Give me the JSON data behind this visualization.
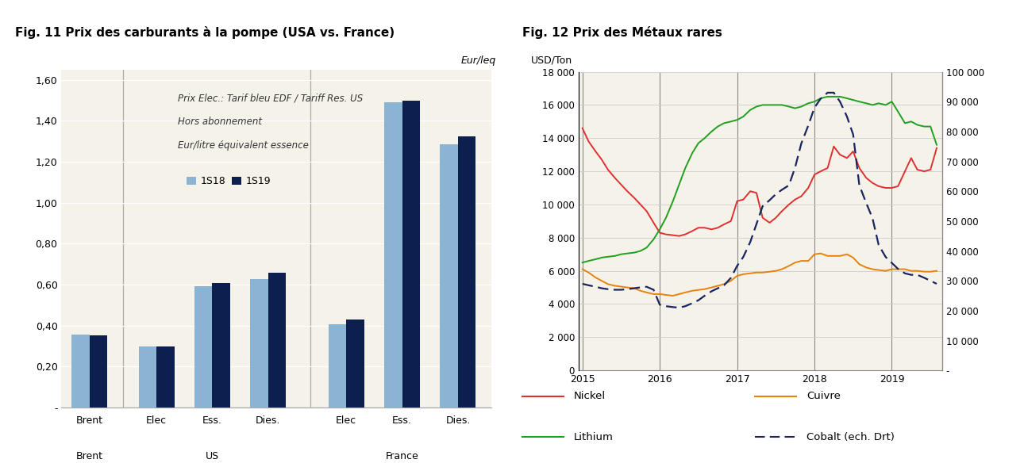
{
  "fig11": {
    "title_parts": [
      "Fig. 11 Prix des carburants à la pompe (USA ",
      "vs",
      ". France)"
    ],
    "title_full": "Fig. 11 Prix des carburants à la pompe (USA vs. France)",
    "ylabel_unit": "Eur/leq",
    "annotation_lines": [
      "Prix Elec.: Tarif bleu EDF / Tariff Res. US",
      "Hors abonnement",
      "Eur/litre équivalent essence"
    ],
    "legend": [
      "1S18",
      "1S19"
    ],
    "color_1s18": "#8ab4d2",
    "color_1s19": "#0d1f4e",
    "groups": [
      "Brent",
      "Elec",
      "Ess.",
      "Dies.",
      "Elec",
      "Ess.",
      "Dies."
    ],
    "values_1s18": [
      0.355,
      0.298,
      0.59,
      0.627,
      0.408,
      1.49,
      1.285
    ],
    "values_1s19": [
      0.353,
      0.298,
      0.608,
      0.659,
      0.428,
      1.497,
      1.322
    ],
    "ylim": [
      0,
      1.65
    ],
    "yticks": [
      0.0,
      0.2,
      0.4,
      0.6,
      0.8,
      1.0,
      1.2,
      1.4,
      1.6
    ],
    "ytick_labels": [
      "-",
      "0,20",
      "0,40",
      "0,60",
      "0,80",
      "1,00",
      "1,20",
      "1,40",
      "1,60"
    ],
    "bg_color": "#ffffff",
    "title_bg_color": "#ece8df",
    "plot_bg": "#f5f2ea"
  },
  "fig12": {
    "title": "Fig. 12 Prix des Métaux rares",
    "ylabel_left": "USD/Ton",
    "bg_color": "#ffffff",
    "title_bg_color": "#ece8df",
    "plot_bg": "#f5f2ea",
    "color_nickel": "#e03030",
    "color_cuivre": "#e8820a",
    "color_lithium": "#20a020",
    "color_cobalt": "#1a2460",
    "ylim_left": [
      0,
      18000
    ],
    "ylim_right": [
      0,
      100000
    ],
    "yticks_left": [
      0,
      2000,
      4000,
      6000,
      8000,
      10000,
      12000,
      14000,
      16000,
      18000
    ],
    "ytick_labels_left": [
      "0",
      "2 000",
      "4 000",
      "6 000",
      "8 000",
      "10 000",
      "12 000",
      "14 000",
      "16 000",
      "18 000"
    ],
    "yticks_right": [
      0,
      10000,
      20000,
      30000,
      40000,
      50000,
      60000,
      70000,
      80000,
      90000,
      100000
    ],
    "ytick_labels_right": [
      "-",
      "10 000",
      "20 000",
      "30 000",
      "40 000",
      "50 000",
      "60 000",
      "70 000",
      "80 000",
      "90 000",
      "100 000"
    ],
    "xticks": [
      2015,
      2016,
      2017,
      2018,
      2019
    ],
    "nickel_x": [
      2015.0,
      2015.08,
      2015.17,
      2015.25,
      2015.33,
      2015.42,
      2015.5,
      2015.58,
      2015.67,
      2015.75,
      2015.83,
      2015.92,
      2016.0,
      2016.08,
      2016.17,
      2016.25,
      2016.33,
      2016.42,
      2016.5,
      2016.58,
      2016.67,
      2016.75,
      2016.83,
      2016.92,
      2017.0,
      2017.08,
      2017.17,
      2017.25,
      2017.33,
      2017.42,
      2017.5,
      2017.58,
      2017.67,
      2017.75,
      2017.83,
      2017.92,
      2018.0,
      2018.08,
      2018.17,
      2018.25,
      2018.33,
      2018.42,
      2018.5,
      2018.58,
      2018.67,
      2018.75,
      2018.83,
      2018.92,
      2019.0,
      2019.08,
      2019.17,
      2019.25,
      2019.33,
      2019.42,
      2019.5,
      2019.58
    ],
    "nickel_y": [
      14600,
      13800,
      13200,
      12700,
      12100,
      11600,
      11200,
      10800,
      10400,
      10000,
      9600,
      8900,
      8300,
      8200,
      8150,
      8100,
      8200,
      8400,
      8600,
      8600,
      8500,
      8600,
      8800,
      9000,
      10200,
      10300,
      10800,
      10700,
      9200,
      8900,
      9200,
      9600,
      10000,
      10300,
      10500,
      11000,
      11800,
      12000,
      12200,
      13500,
      13000,
      12800,
      13200,
      12200,
      11600,
      11300,
      11100,
      11000,
      11000,
      11100,
      12000,
      12800,
      12100,
      12000,
      12100,
      13400
    ],
    "cuivre_x": [
      2015.0,
      2015.08,
      2015.17,
      2015.25,
      2015.33,
      2015.42,
      2015.5,
      2015.58,
      2015.67,
      2015.75,
      2015.83,
      2015.92,
      2016.0,
      2016.08,
      2016.17,
      2016.25,
      2016.33,
      2016.42,
      2016.5,
      2016.58,
      2016.67,
      2016.75,
      2016.83,
      2016.92,
      2017.0,
      2017.08,
      2017.17,
      2017.25,
      2017.33,
      2017.42,
      2017.5,
      2017.58,
      2017.67,
      2017.75,
      2017.83,
      2017.92,
      2018.0,
      2018.08,
      2018.17,
      2018.25,
      2018.33,
      2018.42,
      2018.5,
      2018.58,
      2018.67,
      2018.75,
      2018.83,
      2018.92,
      2019.0,
      2019.08,
      2019.17,
      2019.25,
      2019.33,
      2019.42,
      2019.5,
      2019.58
    ],
    "cuivre_y": [
      6100,
      5900,
      5600,
      5400,
      5200,
      5100,
      5050,
      5000,
      4950,
      4800,
      4700,
      4600,
      4600,
      4550,
      4500,
      4600,
      4700,
      4800,
      4850,
      4900,
      5000,
      5100,
      5200,
      5400,
      5700,
      5800,
      5850,
      5900,
      5900,
      5950,
      6000,
      6100,
      6300,
      6500,
      6600,
      6600,
      7000,
      7050,
      6900,
      6900,
      6900,
      7000,
      6800,
      6400,
      6200,
      6100,
      6050,
      6000,
      6100,
      6100,
      6100,
      6000,
      6000,
      5950,
      5950,
      6000
    ],
    "lithium_x": [
      2015.0,
      2015.08,
      2015.17,
      2015.25,
      2015.33,
      2015.42,
      2015.5,
      2015.58,
      2015.67,
      2015.75,
      2015.83,
      2015.92,
      2016.0,
      2016.08,
      2016.17,
      2016.25,
      2016.33,
      2016.42,
      2016.5,
      2016.58,
      2016.67,
      2016.75,
      2016.83,
      2016.92,
      2017.0,
      2017.08,
      2017.17,
      2017.25,
      2017.33,
      2017.42,
      2017.5,
      2017.58,
      2017.67,
      2017.75,
      2017.83,
      2017.92,
      2018.0,
      2018.08,
      2018.17,
      2018.25,
      2018.33,
      2018.42,
      2018.5,
      2018.58,
      2018.67,
      2018.75,
      2018.83,
      2018.92,
      2019.0,
      2019.08,
      2019.17,
      2019.25,
      2019.33,
      2019.42,
      2019.5,
      2019.58
    ],
    "lithium_y": [
      6500,
      6600,
      6700,
      6800,
      6850,
      6900,
      7000,
      7050,
      7100,
      7200,
      7400,
      7900,
      8500,
      9200,
      10200,
      11200,
      12200,
      13100,
      13700,
      14000,
      14400,
      14700,
      14900,
      15000,
      15100,
      15300,
      15700,
      15900,
      16000,
      16000,
      16000,
      16000,
      15900,
      15800,
      15900,
      16100,
      16200,
      16400,
      16500,
      16500,
      16500,
      16400,
      16300,
      16200,
      16100,
      16000,
      16100,
      16000,
      16200,
      15600,
      14900,
      15000,
      14800,
      14700,
      14700,
      13600
    ],
    "cobalt_x": [
      2015.0,
      2015.08,
      2015.17,
      2015.25,
      2015.33,
      2015.42,
      2015.5,
      2015.58,
      2015.67,
      2015.75,
      2015.83,
      2015.92,
      2016.0,
      2016.08,
      2016.17,
      2016.25,
      2016.33,
      2016.42,
      2016.5,
      2016.58,
      2016.67,
      2016.75,
      2016.83,
      2016.92,
      2017.0,
      2017.08,
      2017.17,
      2017.25,
      2017.33,
      2017.42,
      2017.5,
      2017.58,
      2017.67,
      2017.75,
      2017.83,
      2017.92,
      2018.0,
      2018.08,
      2018.17,
      2018.25,
      2018.33,
      2018.42,
      2018.5,
      2018.58,
      2018.67,
      2018.75,
      2018.83,
      2018.92,
      2019.0,
      2019.08,
      2019.17,
      2019.25,
      2019.33,
      2019.42,
      2019.5,
      2019.58
    ],
    "cobalt_y": [
      29000,
      28500,
      28000,
      27500,
      27200,
      27000,
      27000,
      27200,
      27500,
      27800,
      28000,
      27000,
      22000,
      21500,
      21200,
      21000,
      21500,
      22500,
      23500,
      25000,
      26500,
      27500,
      28500,
      31000,
      35000,
      38000,
      43000,
      49000,
      55000,
      57000,
      59000,
      60500,
      62000,
      68000,
      76000,
      82000,
      88000,
      91000,
      93000,
      93000,
      90000,
      85000,
      79000,
      62000,
      56000,
      51000,
      42000,
      38000,
      36000,
      34000,
      32500,
      32000,
      32000,
      31000,
      30000,
      29000
    ]
  }
}
